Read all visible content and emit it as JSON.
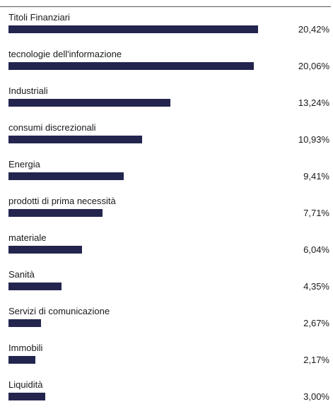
{
  "chart_data": {
    "type": "bar",
    "orientation": "horizontal",
    "title": "",
    "xlabel": "",
    "ylabel": "",
    "xlim": [
      0,
      20.42
    ],
    "grid": false,
    "bar_color": "#23254f",
    "categories": [
      "Titoli Finanziari",
      "tecnologie dell'informazione",
      "Industriali",
      "consumi discrezionali",
      "Energia",
      "prodotti di prima necessità",
      "materiale",
      "Sanità",
      "Servizi di comunicazione",
      "Immobili",
      "Liquidità"
    ],
    "values": [
      20.42,
      20.06,
      13.24,
      10.93,
      9.41,
      7.71,
      6.04,
      4.35,
      2.67,
      2.17,
      3.0
    ],
    "value_labels": [
      "20,42%",
      "20,06%",
      "13,24%",
      "10,93%",
      "9,41%",
      "7,71%",
      "6,04%",
      "4,35%",
      "2,67%",
      "2,17%",
      "3,00%"
    ]
  }
}
